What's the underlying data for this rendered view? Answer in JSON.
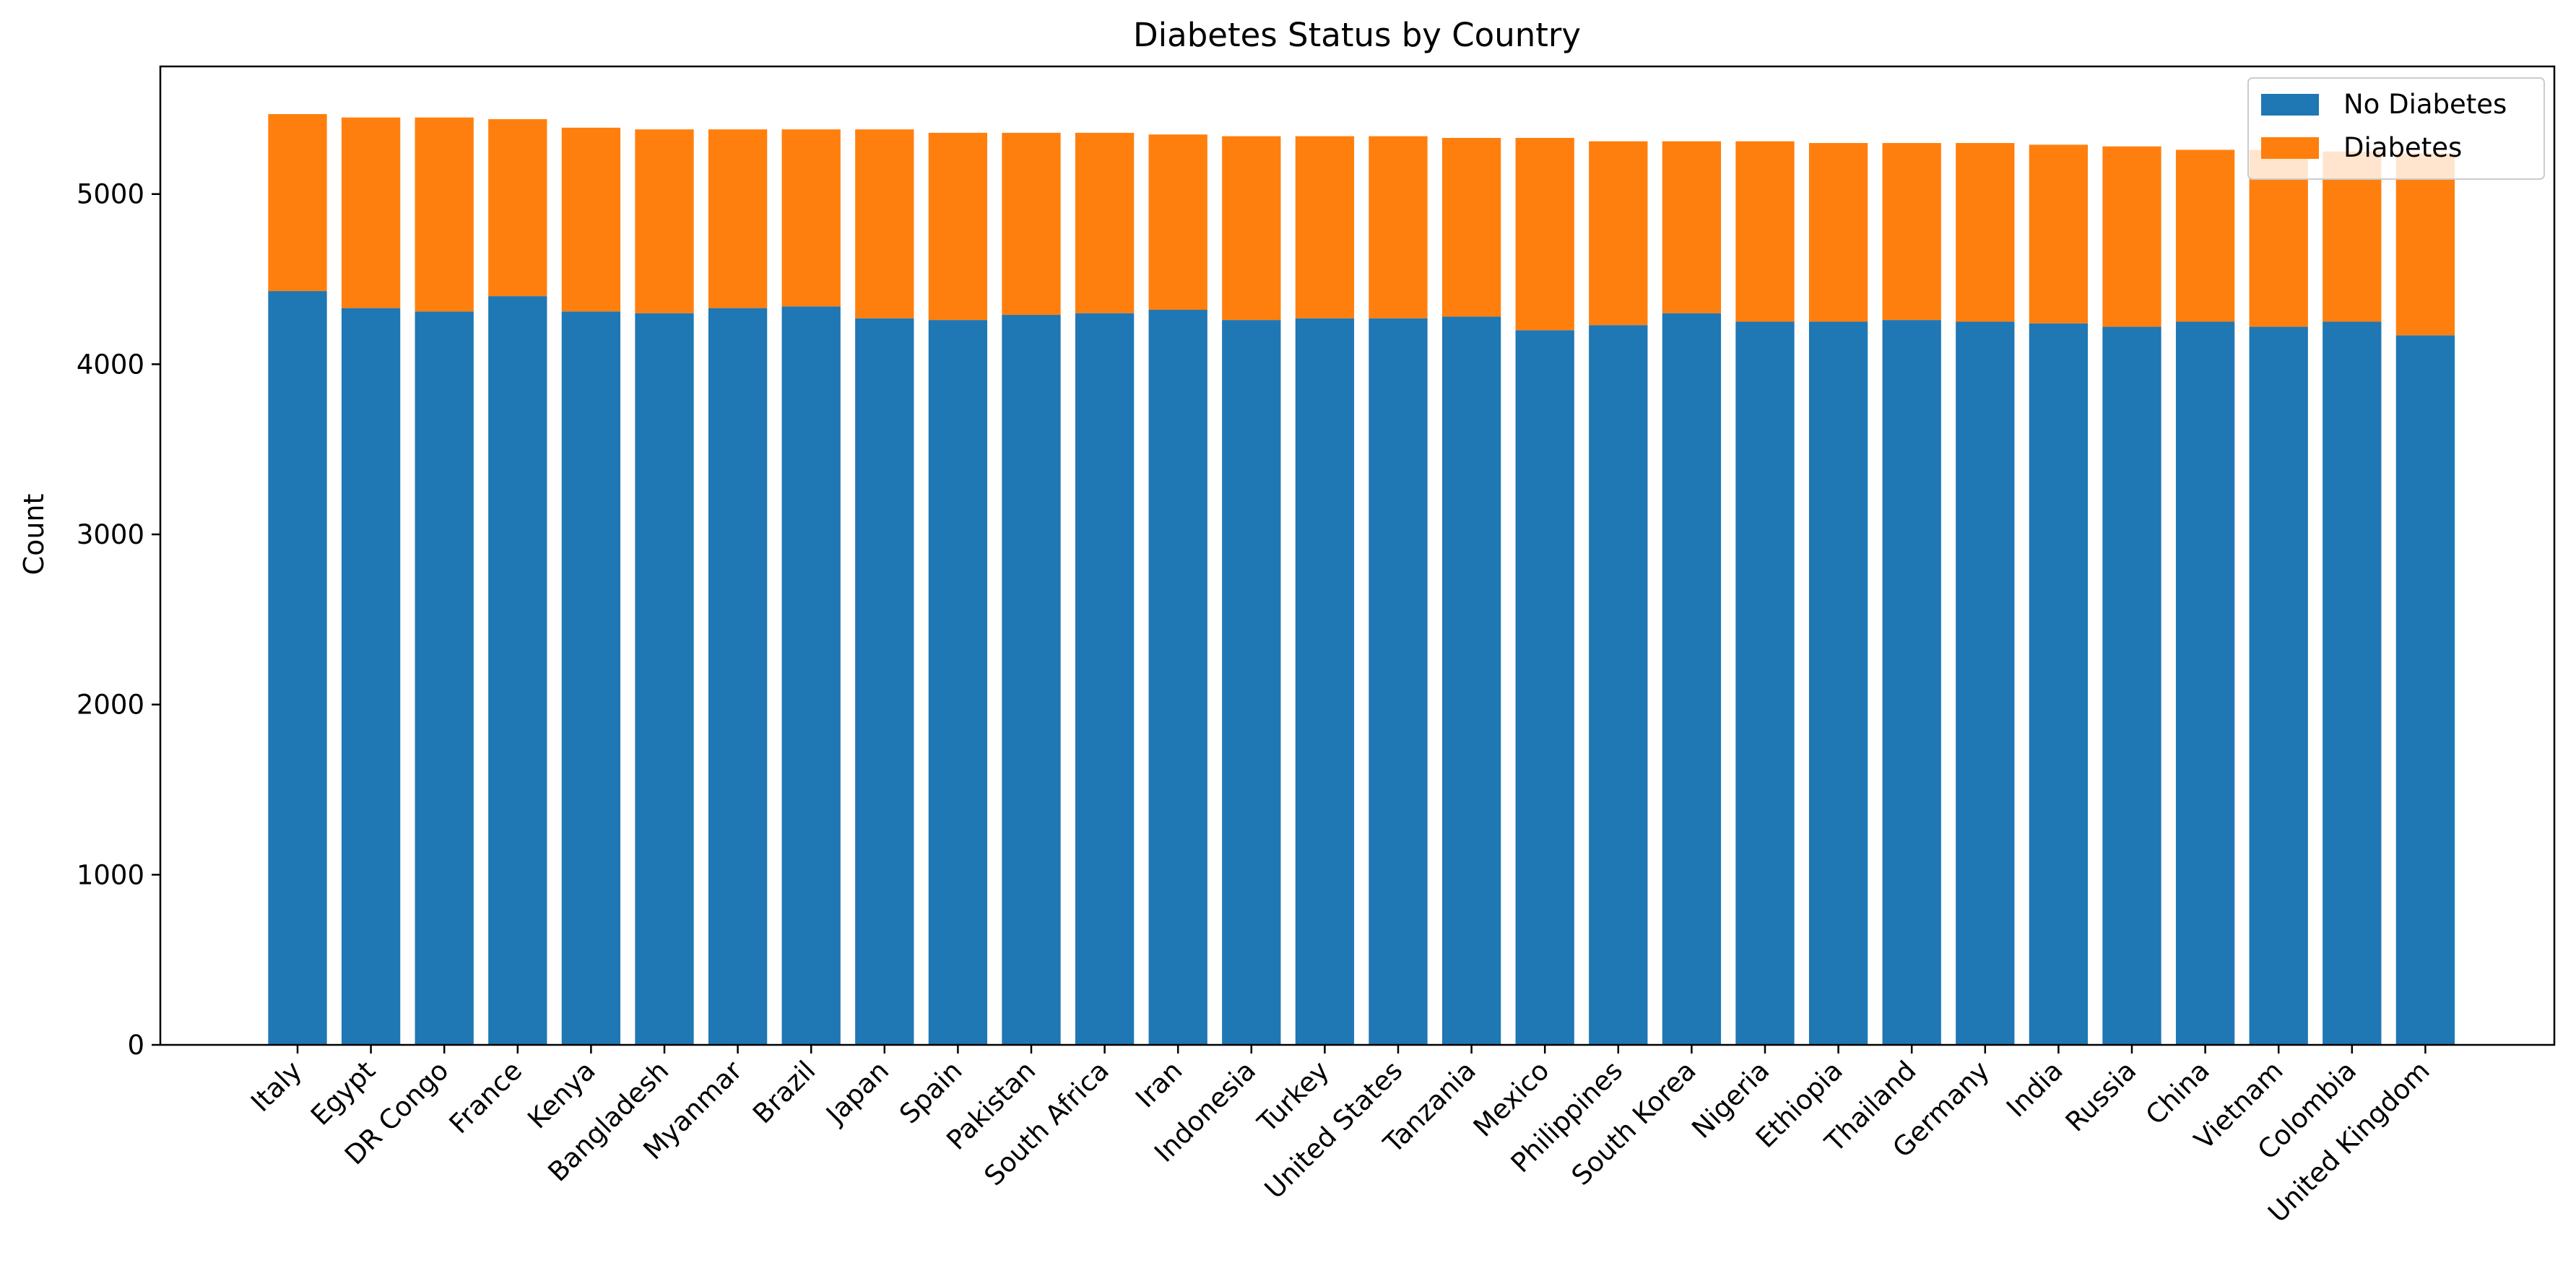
{
  "chart_data": {
    "type": "bar",
    "stacked": true,
    "title": "Diabetes Status by Country",
    "xlabel": "",
    "ylabel": "Count",
    "ylim": [
      0,
      5750
    ],
    "yticks": [
      0,
      1000,
      2000,
      3000,
      4000,
      5000
    ],
    "grid": false,
    "legend_position": "top-right",
    "categories": [
      "Italy",
      "Egypt",
      "DR Congo",
      "France",
      "Kenya",
      "Bangladesh",
      "Myanmar",
      "Brazil",
      "Japan",
      "Spain",
      "Pakistan",
      "South Africa",
      "Iran",
      "Indonesia",
      "Turkey",
      "United States",
      "Tanzania",
      "Mexico",
      "Philippines",
      "South Korea",
      "Nigeria",
      "Ethiopia",
      "Thailand",
      "Germany",
      "India",
      "Russia",
      "China",
      "Vietnam",
      "Colombia",
      "United Kingdom"
    ],
    "series": [
      {
        "name": "No Diabetes",
        "color": "#1f77b4",
        "values": [
          4430,
          4330,
          4310,
          4400,
          4310,
          4300,
          4330,
          4340,
          4270,
          4260,
          4290,
          4300,
          4320,
          4260,
          4270,
          4270,
          4280,
          4200,
          4230,
          4300,
          4250,
          4250,
          4260,
          4250,
          4240,
          4220,
          4250,
          4220,
          4250,
          4170
        ]
      },
      {
        "name": "Diabetes",
        "color": "#ff7f0e",
        "values": [
          1040,
          1120,
          1140,
          1040,
          1080,
          1080,
          1050,
          1040,
          1110,
          1100,
          1070,
          1060,
          1030,
          1080,
          1070,
          1070,
          1050,
          1130,
          1080,
          1010,
          1060,
          1050,
          1040,
          1050,
          1050,
          1060,
          1010,
          1040,
          1000,
          1070
        ]
      }
    ]
  }
}
